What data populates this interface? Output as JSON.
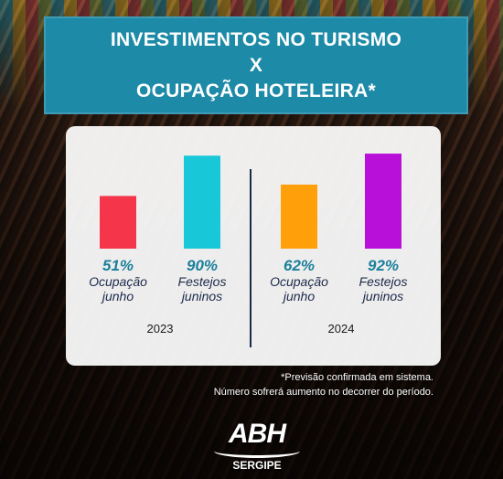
{
  "header": {
    "title_line1": "INVESTIMENTOS NO TURISMO",
    "title_line2": "X",
    "title_line3": "OCUPAÇÃO HOTELEIRA*"
  },
  "chart_data": {
    "type": "bar",
    "ylim": [
      0,
      100
    ],
    "grid": false,
    "groups": [
      {
        "year": "2023",
        "bars": [
          {
            "value": 51,
            "value_label": "51%",
            "label_line1": "Ocupação",
            "label_line2": "junho",
            "color": "#f5364a"
          },
          {
            "value": 90,
            "value_label": "90%",
            "label_line1": "Festejos",
            "label_line2": "juninos",
            "color": "#18c8d8"
          }
        ]
      },
      {
        "year": "2024",
        "bars": [
          {
            "value": 62,
            "value_label": "62%",
            "label_line1": "Ocupação",
            "label_line2": "junho",
            "color": "#ff9f0a"
          },
          {
            "value": 92,
            "value_label": "92%",
            "label_line1": "Festejos",
            "label_line2": "juninos",
            "color": "#b810d8"
          }
        ]
      }
    ],
    "value_label_color": "#1a7f9a",
    "category_label_color": "#1a2a4a"
  },
  "footnote": {
    "line1": "*Previsão confirmada em sistema.",
    "line2": "Número sofrerá aumento no decorrer do período."
  },
  "logo": {
    "main": "ABH",
    "sub": "SERGIPE"
  }
}
